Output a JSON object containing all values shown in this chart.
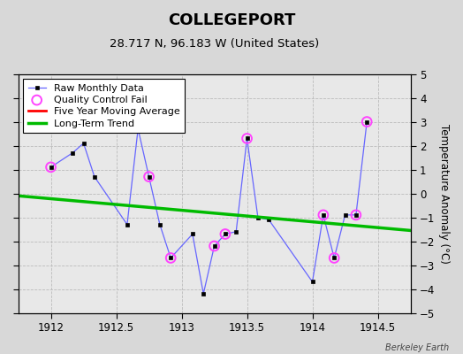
{
  "title": "COLLEGEPORT",
  "subtitle": "28.717 N, 96.183 W (United States)",
  "ylabel": "Temperature Anomaly (°C)",
  "watermark": "Berkeley Earth",
  "xlim": [
    1911.75,
    1914.75
  ],
  "ylim": [
    -5,
    5
  ],
  "xticks": [
    1912,
    1912.5,
    1913,
    1913.5,
    1914,
    1914.5
  ],
  "yticks": [
    -5,
    -4,
    -3,
    -2,
    -1,
    0,
    1,
    2,
    3,
    4,
    5
  ],
  "raw_x": [
    1912.0,
    1912.1667,
    1912.25,
    1912.3333,
    1912.5833,
    1912.6667,
    1912.75,
    1912.8333,
    1912.9167,
    1913.0833,
    1913.1667,
    1913.25,
    1913.3333,
    1913.4167,
    1913.5,
    1913.5833,
    1913.6667,
    1914.0,
    1914.0833,
    1914.1667,
    1914.25,
    1914.3333,
    1914.4167
  ],
  "raw_y": [
    1.1,
    1.7,
    2.1,
    0.7,
    -1.3,
    2.7,
    0.7,
    -1.3,
    -2.7,
    -1.7,
    -4.2,
    -2.2,
    -1.7,
    -1.6,
    2.3,
    -1.0,
    -1.1,
    -3.7,
    -0.9,
    -2.7,
    -0.9,
    -0.9,
    3.0
  ],
  "qc_fail_x": [
    1912.0,
    1912.75,
    1912.9167,
    1913.25,
    1913.3333,
    1913.5,
    1914.0833,
    1914.1667,
    1914.3333,
    1914.4167
  ],
  "qc_fail_y": [
    1.1,
    0.7,
    -2.7,
    -2.2,
    -1.7,
    2.3,
    -0.9,
    -2.7,
    -0.9,
    3.0
  ],
  "trend_x": [
    1911.75,
    1914.75
  ],
  "trend_y": [
    -0.1,
    -1.55
  ],
  "bg_color": "#d8d8d8",
  "plot_bg_color": "#e8e8e8",
  "raw_line_color": "#6666ff",
  "raw_marker_color": "#000000",
  "qc_color": "#ff44ff",
  "ma_color": "#ff0000",
  "trend_color": "#00bb00",
  "grid_color": "#bbbbbb",
  "title_fontsize": 13,
  "subtitle_fontsize": 9.5,
  "legend_fontsize": 8,
  "tick_fontsize": 8.5
}
